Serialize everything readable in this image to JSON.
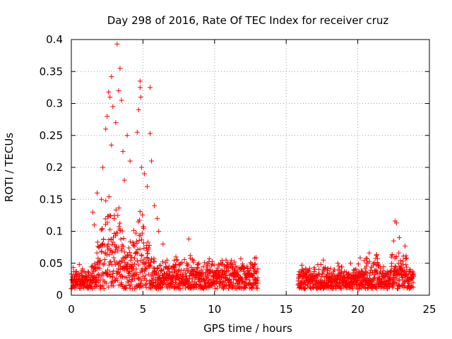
{
  "chart_data": {
    "type": "scatter",
    "title": "Day 298 of 2016, Rate Of TEC Index for receiver cruz",
    "xlabel": "GPS time / hours",
    "ylabel": "ROTI / TECUs",
    "xlim": [
      0,
      25
    ],
    "ylim": [
      0,
      0.4
    ],
    "xticks": [
      0,
      5,
      10,
      15,
      20,
      25
    ],
    "yticks": [
      0,
      0.05,
      0.1,
      0.15,
      0.2,
      0.25,
      0.3,
      0.35,
      0.4
    ],
    "xtick_labels": [
      "0",
      "5",
      "10",
      "15",
      "20",
      "25"
    ],
    "ytick_labels": [
      "0",
      "0.05",
      "0.1",
      "0.15",
      "0.2",
      "0.25",
      "0.3",
      "0.35",
      "0.4"
    ],
    "grid": true,
    "marker": "+",
    "marker_color": "#ff0000",
    "data_gap_hours": [
      13.0,
      15.8
    ],
    "series": [
      {
        "name": "ROTI",
        "points": [
          [
            3.2,
            0.393
          ],
          [
            3.4,
            0.355
          ],
          [
            2.8,
            0.342
          ],
          [
            4.8,
            0.335
          ],
          [
            4.8,
            0.325
          ],
          [
            5.5,
            0.325
          ],
          [
            4.85,
            0.31
          ],
          [
            2.6,
            0.318
          ],
          [
            2.7,
            0.31
          ],
          [
            3.3,
            0.32
          ],
          [
            3.5,
            0.305
          ],
          [
            2.9,
            0.295
          ],
          [
            4.7,
            0.29
          ],
          [
            2.5,
            0.28
          ],
          [
            3.1,
            0.27
          ],
          [
            3.9,
            0.25
          ],
          [
            4.6,
            0.255
          ],
          [
            5.5,
            0.253
          ],
          [
            2.4,
            0.26
          ],
          [
            2.8,
            0.235
          ],
          [
            3.6,
            0.225
          ],
          [
            4.1,
            0.21
          ],
          [
            5.6,
            0.21
          ],
          [
            4.9,
            0.2
          ],
          [
            5.1,
            0.19
          ],
          [
            2.2,
            0.2
          ],
          [
            3.7,
            0.18
          ],
          [
            5.3,
            0.17
          ],
          [
            1.8,
            0.16
          ],
          [
            2.1,
            0.15
          ],
          [
            5.8,
            0.14
          ],
          [
            6.0,
            0.12
          ],
          [
            6.1,
            0.1
          ],
          [
            8.2,
            0.088
          ],
          [
            1.5,
            0.13
          ],
          [
            1.6,
            0.11
          ],
          [
            6.4,
            0.08
          ],
          [
            7.3,
            0.06
          ],
          [
            8.3,
            0.062
          ],
          [
            10.8,
            0.055
          ],
          [
            12.8,
            0.058
          ],
          [
            22.6,
            0.116
          ],
          [
            22.7,
            0.113
          ],
          [
            22.9,
            0.09
          ],
          [
            22.5,
            0.085
          ],
          [
            23.3,
            0.077
          ],
          [
            20.8,
            0.066
          ],
          [
            21.3,
            0.062
          ],
          [
            17.6,
            0.055
          ],
          [
            18.6,
            0.05
          ],
          [
            16.1,
            0.047
          ],
          [
            19.5,
            0.05
          ]
        ]
      }
    ]
  }
}
